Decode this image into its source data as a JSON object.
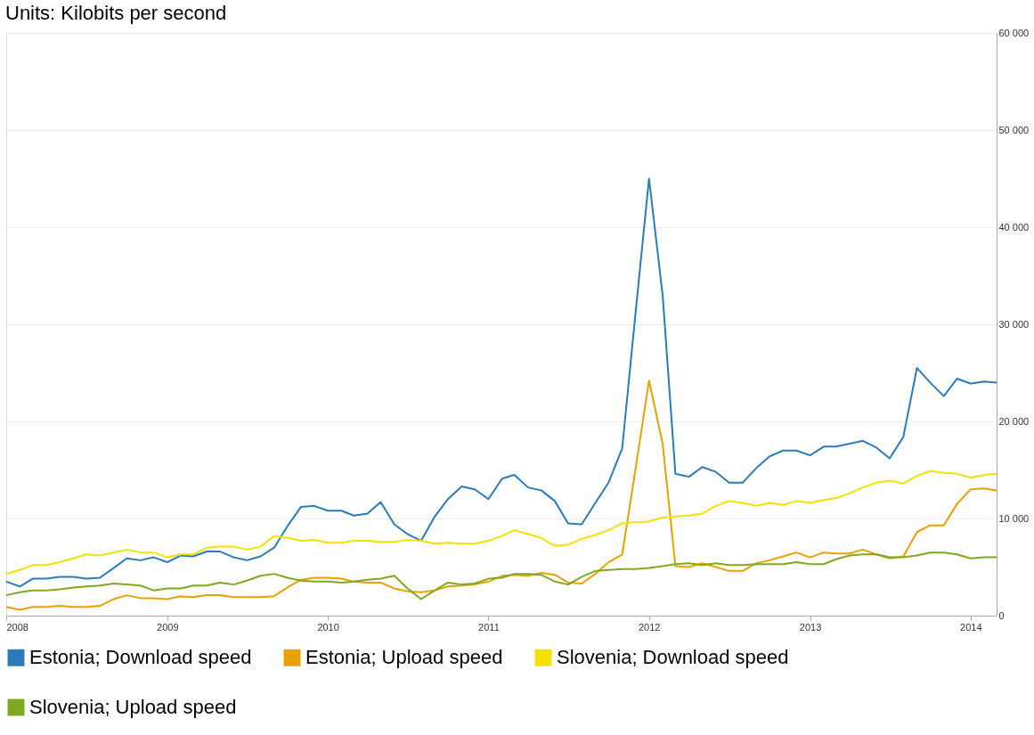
{
  "chart_data": {
    "type": "line",
    "title": "Units: Kilobits per second",
    "x": [
      "2008-01",
      "2008-02",
      "2008-03",
      "2008-04",
      "2008-05",
      "2008-06",
      "2008-07",
      "2008-08",
      "2008-09",
      "2008-10",
      "2008-11",
      "2008-12",
      "2009-01",
      "2009-02",
      "2009-03",
      "2009-04",
      "2009-05",
      "2009-06",
      "2009-07",
      "2009-08",
      "2009-09",
      "2009-10",
      "2009-11",
      "2009-12",
      "2010-01",
      "2010-02",
      "2010-03",
      "2010-04",
      "2010-05",
      "2010-06",
      "2010-07",
      "2010-08",
      "2010-09",
      "2010-10",
      "2010-11",
      "2010-12",
      "2011-01",
      "2011-02",
      "2011-03",
      "2011-04",
      "2011-05",
      "2011-06",
      "2011-07",
      "2011-08",
      "2011-09",
      "2011-10",
      "2011-11",
      "2011-12",
      "2012-01",
      "2012-02",
      "2012-03",
      "2012-04",
      "2012-05",
      "2012-06",
      "2012-07",
      "2012-08",
      "2012-09",
      "2012-10",
      "2012-11",
      "2012-12",
      "2013-01",
      "2013-02",
      "2013-03",
      "2013-04",
      "2013-05",
      "2013-06",
      "2013-07",
      "2013-08",
      "2013-09",
      "2013-10",
      "2013-11",
      "2013-12",
      "2014-01",
      "2014-02",
      "2014-03"
    ],
    "series": [
      {
        "name": "Estonia; Download speed",
        "color": "#2b7bba",
        "values": [
          3500,
          3000,
          3800,
          3800,
          4000,
          4000,
          3800,
          3900,
          4900,
          5900,
          5700,
          6000,
          5500,
          6200,
          6100,
          6600,
          6600,
          6000,
          5700,
          6100,
          7000,
          9200,
          11200,
          11300,
          10800,
          10800,
          10300,
          10500,
          11700,
          9400,
          8400,
          7700,
          10200,
          12000,
          13300,
          13000,
          12000,
          14100,
          14500,
          13200,
          12900,
          11800,
          9500,
          9400,
          11600,
          13700,
          17200,
          31000,
          45000,
          33000,
          14600,
          14300,
          15300,
          14800,
          13700,
          13700,
          15200,
          16400,
          17000,
          17000,
          16500,
          17400,
          17400,
          17700,
          18000,
          17300,
          16200,
          18400,
          25500,
          24000,
          22600,
          24400,
          23900,
          24100,
          24000
        ]
      },
      {
        "name": "Estonia; Upload speed",
        "color": "#e8a200",
        "values": [
          900,
          600,
          900,
          900,
          1000,
          900,
          900,
          1000,
          1700,
          2100,
          1800,
          1800,
          1700,
          2000,
          1900,
          2100,
          2100,
          1900,
          1900,
          1900,
          2000,
          2900,
          3700,
          3900,
          3900,
          3800,
          3500,
          3400,
          3400,
          2800,
          2500,
          2400,
          2600,
          3000,
          3100,
          3200,
          3500,
          4100,
          4200,
          4100,
          4400,
          4200,
          3400,
          3300,
          4300,
          5500,
          6300,
          15000,
          24200,
          17700,
          5100,
          5000,
          5400,
          5000,
          4600,
          4600,
          5400,
          5700,
          6100,
          6500,
          6000,
          6500,
          6400,
          6400,
          6800,
          6300,
          5900,
          6100,
          8600,
          9300,
          9300,
          11500,
          13000,
          13100,
          12900
        ]
      },
      {
        "name": "Slovenia; Download speed",
        "color": "#f2e200",
        "values": [
          4300,
          4700,
          5200,
          5200,
          5500,
          5900,
          6300,
          6200,
          6500,
          6800,
          6500,
          6500,
          6000,
          6300,
          6300,
          7000,
          7100,
          7100,
          6800,
          7100,
          8200,
          8000,
          7700,
          7800,
          7500,
          7500,
          7700,
          7700,
          7600,
          7600,
          7800,
          7700,
          7400,
          7500,
          7400,
          7400,
          7700,
          8200,
          8800,
          8400,
          8000,
          7200,
          7300,
          7900,
          8300,
          8800,
          9500,
          9600,
          9700,
          10100,
          10200,
          10300,
          10500,
          11300,
          11800,
          11600,
          11300,
          11600,
          11400,
          11800,
          11600,
          11900,
          12100,
          12600,
          13200,
          13700,
          13900,
          13600,
          14400,
          14900,
          14700,
          14600,
          14200,
          14500,
          14600
        ]
      },
      {
        "name": "Slovenia; Upload speed",
        "color": "#80a820",
        "values": [
          2100,
          2400,
          2600,
          2600,
          2700,
          2900,
          3000,
          3100,
          3300,
          3200,
          3100,
          2600,
          2800,
          2800,
          3100,
          3100,
          3400,
          3200,
          3600,
          4100,
          4300,
          3900,
          3600,
          3500,
          3500,
          3400,
          3500,
          3700,
          3800,
          4100,
          2800,
          1700,
          2600,
          3400,
          3200,
          3300,
          3800,
          3900,
          4300,
          4300,
          4200,
          3500,
          3200,
          4000,
          4600,
          4700,
          4800,
          4800,
          4900,
          5100,
          5300,
          5400,
          5200,
          5400,
          5200,
          5200,
          5300,
          5300,
          5300,
          5500,
          5300,
          5300,
          5800,
          6200,
          6300,
          6300,
          6000,
          6000,
          6200,
          6500,
          6500,
          6300,
          5900,
          6000,
          6000
        ]
      }
    ],
    "xlim": [
      "2008-01",
      "2014-03"
    ],
    "xticks": [
      "2008",
      "2009",
      "2010",
      "2011",
      "2012",
      "2013",
      "2014"
    ],
    "ylim": [
      0,
      60000
    ],
    "yticks": [
      {
        "value": 0,
        "label": "0"
      },
      {
        "value": 10000,
        "label": "10 000"
      },
      {
        "value": 20000,
        "label": "20 000"
      },
      {
        "value": 30000,
        "label": "30 000"
      },
      {
        "value": 40000,
        "label": "40 000"
      },
      {
        "value": 50000,
        "label": "50 000"
      },
      {
        "value": 60000,
        "label": "60 000"
      }
    ],
    "grid": "y",
    "legend": "bottom",
    "line_style": "solid",
    "marker": "none"
  }
}
